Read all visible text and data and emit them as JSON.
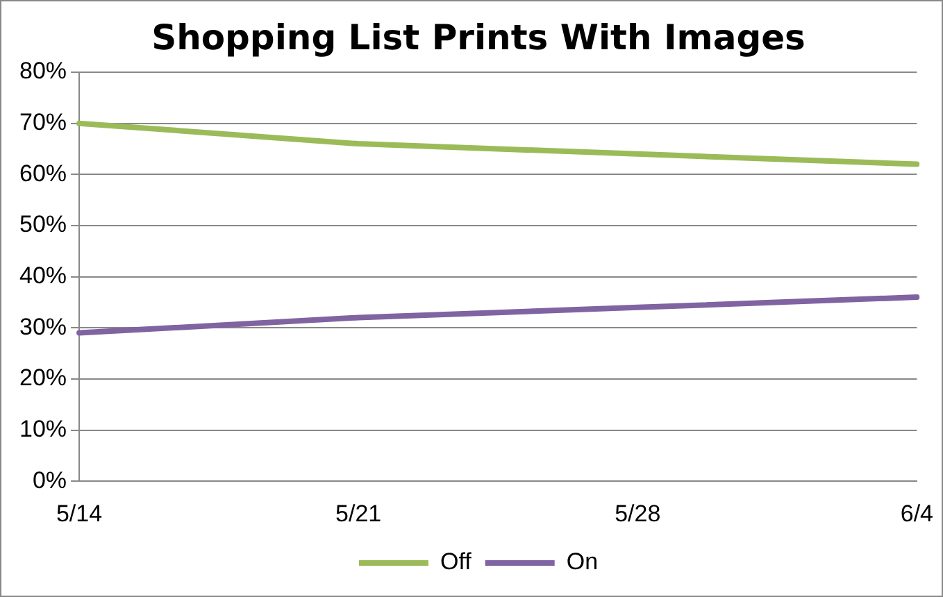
{
  "chart_data": {
    "type": "line",
    "title": "Shopping List Prints With Images",
    "categories": [
      "5/14",
      "5/21",
      "5/28",
      "6/4"
    ],
    "series": [
      {
        "name": "Off",
        "color": "#9bbb59",
        "values": [
          70,
          66,
          64,
          62
        ]
      },
      {
        "name": "On",
        "color": "#8064a2",
        "values": [
          29,
          32,
          34,
          36
        ]
      }
    ],
    "ylim": [
      0,
      80
    ],
    "yticks": [
      {
        "value": 0,
        "label": "0%"
      },
      {
        "value": 10,
        "label": "10%"
      },
      {
        "value": 20,
        "label": "20%"
      },
      {
        "value": 30,
        "label": "30%"
      },
      {
        "value": 40,
        "label": "40%"
      },
      {
        "value": 50,
        "label": "50%"
      },
      {
        "value": 60,
        "label": "60%"
      },
      {
        "value": 70,
        "label": "70%"
      },
      {
        "value": 80,
        "label": "80%"
      }
    ],
    "grid": "y",
    "legend": "bottom",
    "marker": "none",
    "line_style": "solid"
  }
}
